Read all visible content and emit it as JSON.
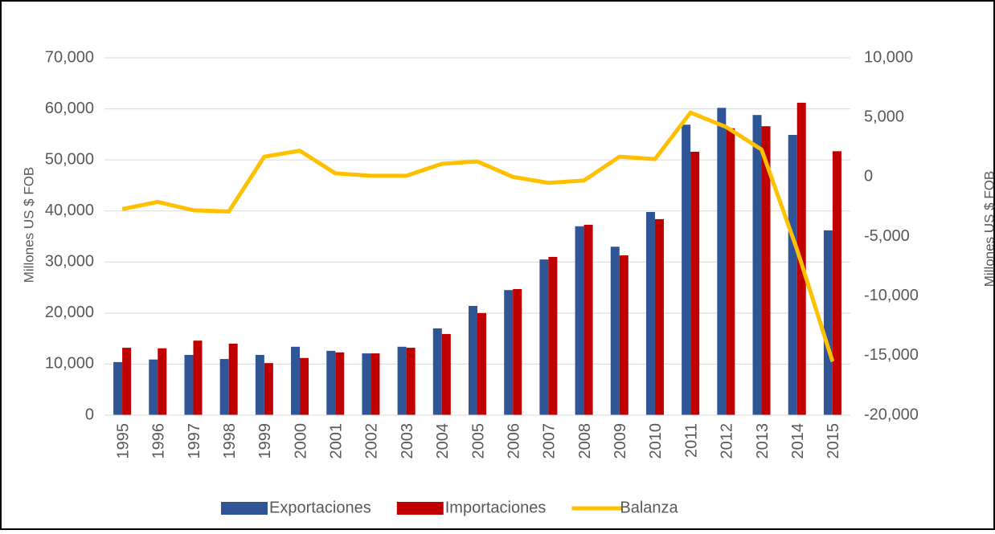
{
  "chart_data": {
    "type": "bar",
    "categories": [
      "1995",
      "1996",
      "1997",
      "1998",
      "1999",
      "2000",
      "2001",
      "2002",
      "2003",
      "2004",
      "2005",
      "2006",
      "2007",
      "2008",
      "2009",
      "2010",
      "2011",
      "2012",
      "2013",
      "2014",
      "2015"
    ],
    "series": [
      {
        "name": "Exportaciones",
        "color": "#2f5597",
        "values": [
          10400,
          10900,
          11800,
          11000,
          11800,
          13400,
          12600,
          12100,
          13400,
          17000,
          21400,
          24500,
          30500,
          37000,
          33000,
          39800,
          56900,
          60200,
          58800,
          54900,
          36200
        ]
      },
      {
        "name": "Importaciones",
        "color": "#c00000",
        "values": [
          13200,
          13100,
          14600,
          14000,
          10200,
          11200,
          12300,
          12100,
          13200,
          15900,
          20000,
          24700,
          31000,
          37300,
          31300,
          38400,
          51600,
          56200,
          56600,
          61200,
          51700
        ]
      },
      {
        "name": "Balanza",
        "color": "#ffc000",
        "type": "line",
        "axis": "y2",
        "values": [
          -2700,
          -2100,
          -2800,
          -2900,
          1700,
          2200,
          300,
          100,
          100,
          1100,
          1300,
          0,
          -500,
          -300,
          1700,
          1500,
          5400,
          4200,
          2300,
          -6100,
          -15500
        ]
      }
    ],
    "ylabel": "Millones US $ FOB",
    "y2label": "Millones US $ FOB",
    "ylim": [
      0,
      70000
    ],
    "yticks": [
      0,
      {
        "value": 10000,
        "label": "10,000"
      },
      {
        "value": 20000,
        "label": "20,000"
      },
      {
        "value": 30000,
        "label": "30,000"
      },
      {
        "value": 40000,
        "label": "40,000"
      },
      {
        "value": 50000,
        "label": "50,000"
      },
      {
        "value": 60000,
        "label": "60,000"
      },
      {
        "value": 70000,
        "label": "70,000"
      }
    ],
    "y2lim": [
      -20000,
      10000
    ],
    "y2ticks": [
      {
        "value": -20000,
        "label": "-20,000"
      },
      {
        "value": -15000,
        "label": "-15,000"
      },
      {
        "value": -10000,
        "label": "-10,000"
      },
      {
        "value": -5000,
        "label": "-5,000"
      },
      0,
      {
        "value": 5000,
        "label": "5,000"
      },
      {
        "value": 10000,
        "label": "10,000"
      }
    ],
    "grid": true,
    "legend": "bottom"
  }
}
